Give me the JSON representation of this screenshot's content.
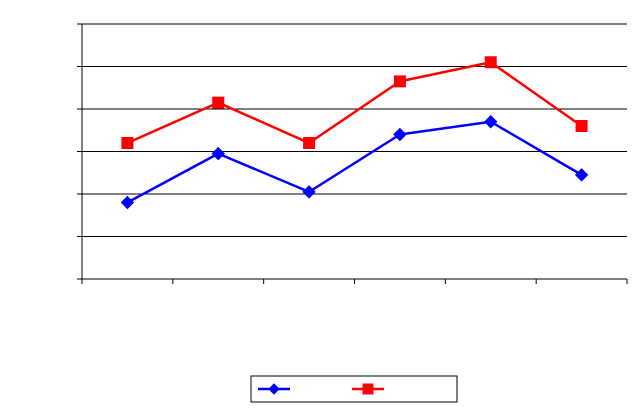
{
  "chart_data": {
    "type": "line",
    "title": "",
    "xlabel": "",
    "ylabel": "",
    "x": [
      1,
      2,
      3,
      4,
      5,
      6
    ],
    "ylim": [
      0,
      6
    ],
    "grid": true,
    "legend_placement": "bottom",
    "series": [
      {
        "color": "#0000ff",
        "marker": "diamond",
        "values": [
          1.8,
          2.95,
          2.05,
          3.4,
          3.7,
          2.45
        ]
      },
      {
        "color": "#ff0000",
        "marker": "square",
        "values": [
          3.2,
          4.15,
          3.2,
          4.65,
          5.1,
          3.6
        ]
      }
    ]
  }
}
